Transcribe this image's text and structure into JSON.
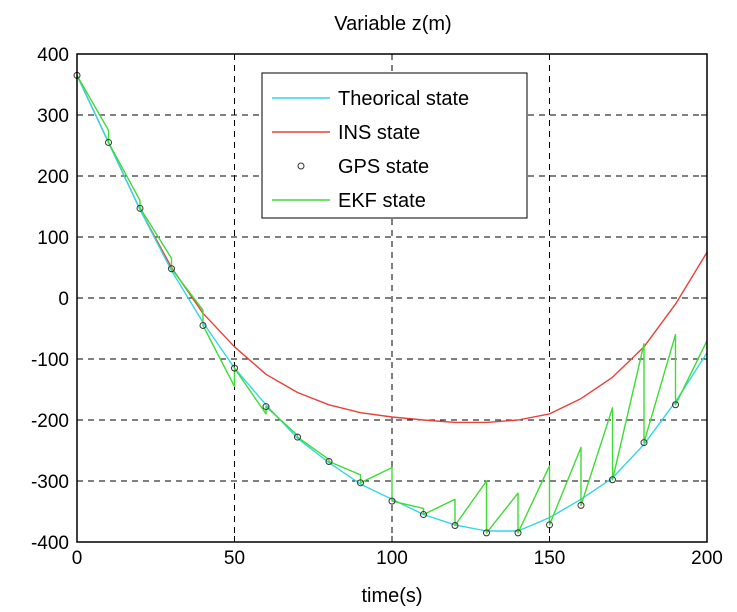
{
  "chart_data": {
    "type": "line",
    "title": "Variable z(m)",
    "xlabel": "time(s)",
    "ylabel": "",
    "xlim": [
      0,
      200
    ],
    "ylim": [
      -400,
      400
    ],
    "xticks": [
      "0",
      "50",
      "100",
      "150",
      "200"
    ],
    "yticks": [
      "400",
      "300",
      "200",
      "100",
      "0",
      "-100",
      "-200",
      "-300",
      "-400"
    ],
    "grid": true,
    "legend_position": "top-center",
    "series": [
      {
        "name": "Theorical state",
        "style": "line",
        "color": "#33d6e6",
        "x": [
          0,
          10,
          20,
          30,
          40,
          50,
          60,
          70,
          80,
          90,
          100,
          110,
          120,
          130,
          140,
          150,
          160,
          170,
          180,
          190,
          200
        ],
        "y": [
          365,
          255,
          145,
          45,
          -40,
          -115,
          -175,
          -230,
          -270,
          -305,
          -330,
          -355,
          -372,
          -382,
          -382,
          -360,
          -330,
          -295,
          -240,
          -170,
          -90
        ]
      },
      {
        "name": "INS state",
        "style": "line",
        "color": "#e8413a",
        "x": [
          0,
          10,
          20,
          30,
          40,
          50,
          60,
          70,
          80,
          90,
          100,
          110,
          120,
          130,
          140,
          150,
          160,
          170,
          180,
          190,
          200
        ],
        "y": [
          365,
          255,
          145,
          50,
          -25,
          -80,
          -125,
          -155,
          -175,
          -188,
          -195,
          -200,
          -204,
          -204,
          -200,
          -190,
          -165,
          -130,
          -80,
          -10,
          75
        ]
      },
      {
        "name": "GPS state",
        "style": "marker",
        "color": "#333333",
        "x": [
          0,
          10,
          20,
          30,
          40,
          50,
          60,
          70,
          80,
          90,
          100,
          110,
          120,
          130,
          140,
          150,
          160,
          170,
          180,
          190
        ],
        "y": [
          365,
          255,
          147,
          48,
          -45,
          -115,
          -178,
          -228,
          -268,
          -303,
          -333,
          -355,
          -373,
          -385,
          -385,
          -372,
          -340,
          -298,
          -237,
          -175
        ]
      },
      {
        "name": "EKF state",
        "style": "line",
        "color": "#3fdb36",
        "x": [
          0,
          10,
          10,
          20,
          20,
          30,
          30,
          40,
          40,
          50,
          50,
          60,
          60,
          70,
          70,
          80,
          80,
          90,
          90,
          100,
          100,
          110,
          110,
          120,
          120,
          130,
          130,
          140,
          140,
          150,
          150,
          160,
          160,
          170,
          170,
          180,
          180,
          190,
          190,
          200
        ],
        "y": [
          365,
          275,
          255,
          160,
          148,
          65,
          48,
          -20,
          -45,
          -145,
          -115,
          -190,
          -178,
          -225,
          -228,
          -265,
          -268,
          -290,
          -303,
          -278,
          -333,
          -345,
          -355,
          -330,
          -373,
          -300,
          -385,
          -320,
          -385,
          -275,
          -372,
          -245,
          -340,
          -180,
          -298,
          -75,
          -237,
          -60,
          -175,
          -70
        ]
      }
    ]
  }
}
